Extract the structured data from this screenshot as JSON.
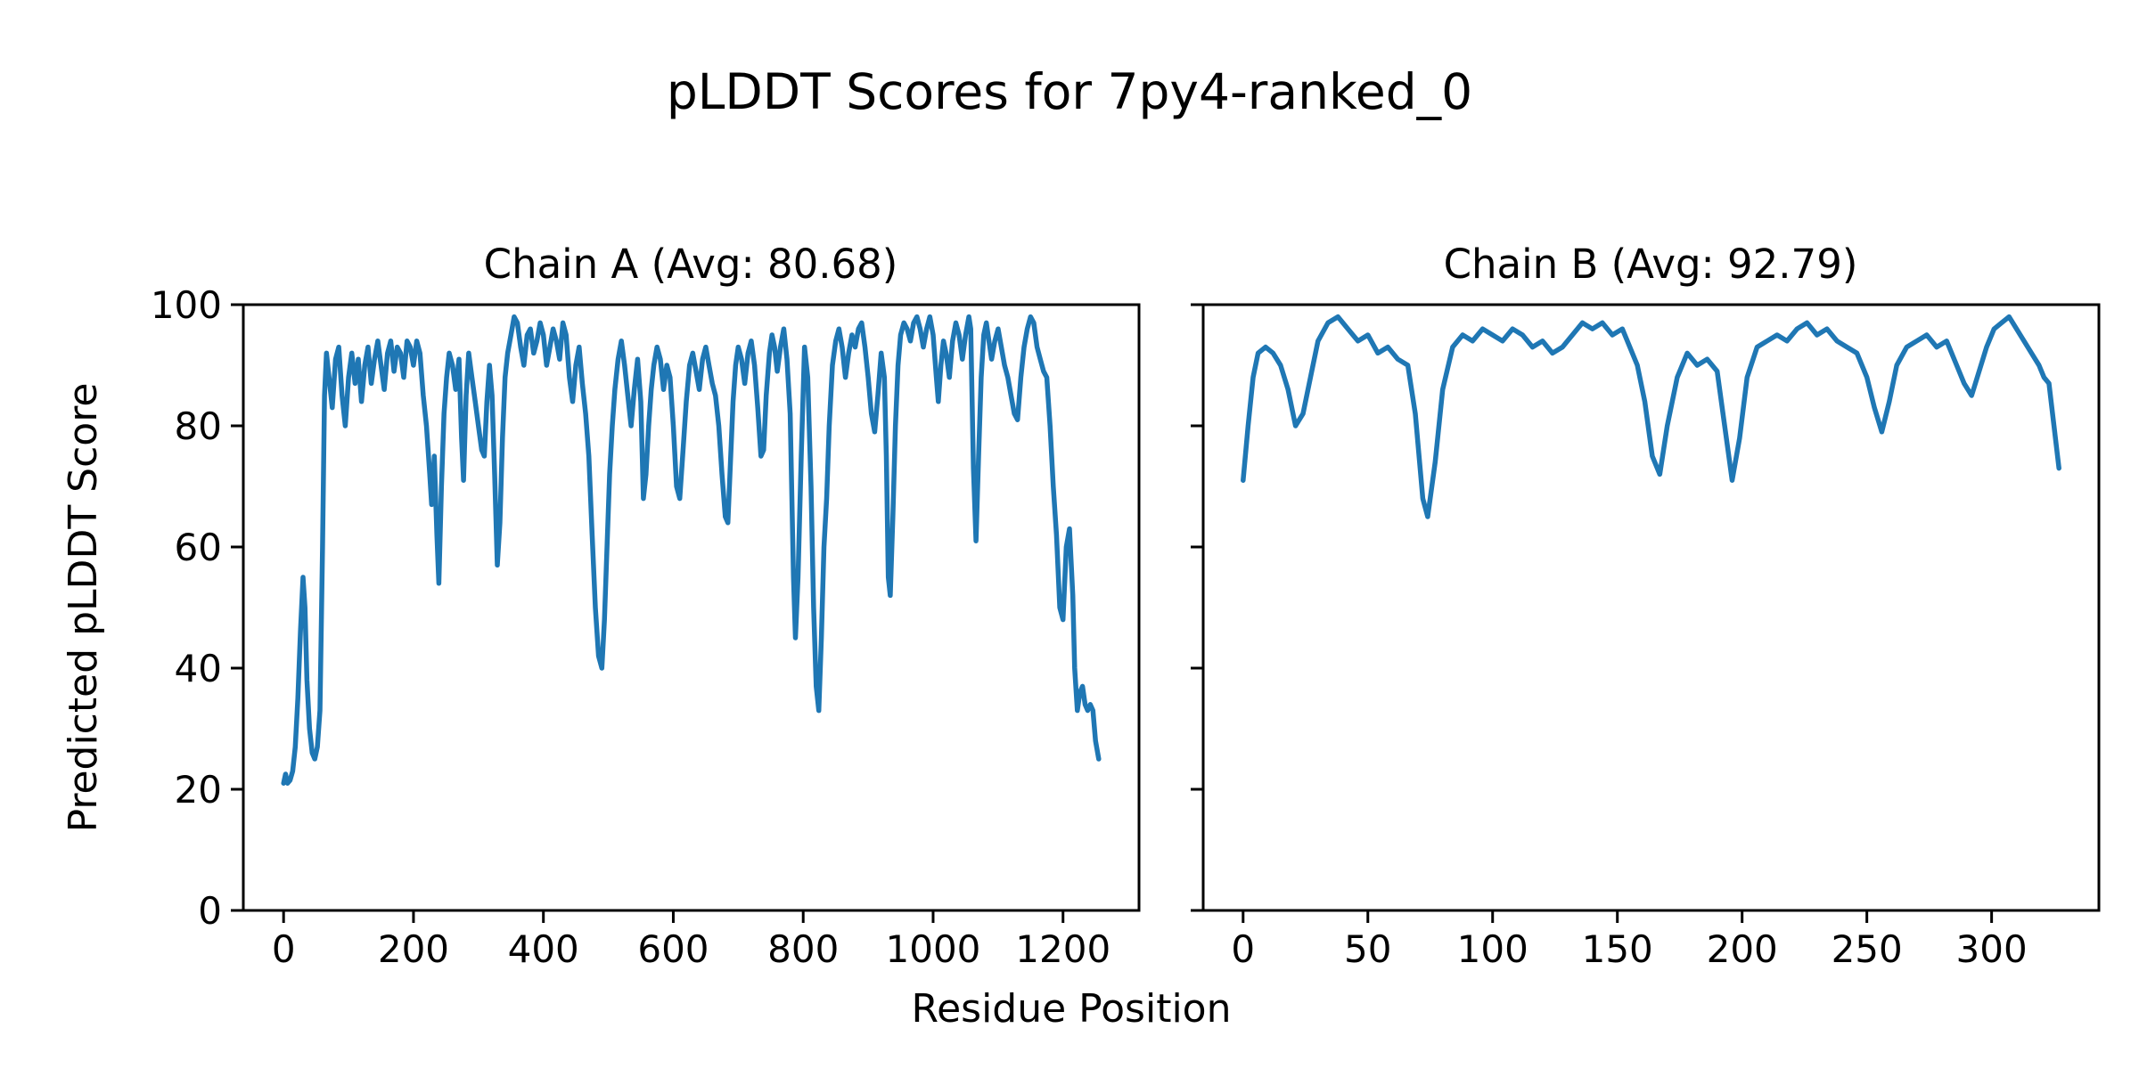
{
  "figure": {
    "title": "pLDDT Scores for 7py4-ranked_0",
    "xlabel": "Residue Position",
    "ylabel": "Predicted pLDDT Score",
    "background_color": "#ffffff",
    "line_color": "#1f77b4",
    "spine_color": "#000000",
    "tick_color": "#000000"
  },
  "chart_data": [
    {
      "type": "line",
      "title": "Chain A (Avg: 80.68)",
      "series_name": "Chain A pLDDT",
      "avg_label_value": "80.68",
      "xlim": [
        -62,
        1317
      ],
      "ylim": [
        0,
        100
      ],
      "xticks": [
        0,
        200,
        400,
        600,
        800,
        1000,
        1200
      ],
      "yticks": [
        0,
        20,
        40,
        60,
        80,
        100
      ],
      "show_ytick_labels": true,
      "grid": false,
      "points": [
        [
          0,
          21
        ],
        [
          3,
          22.5
        ],
        [
          6,
          21
        ],
        [
          10,
          21.5
        ],
        [
          14,
          23
        ],
        [
          18,
          27
        ],
        [
          22,
          35
        ],
        [
          26,
          46
        ],
        [
          30,
          55
        ],
        [
          33,
          50
        ],
        [
          36,
          38
        ],
        [
          40,
          30
        ],
        [
          44,
          26
        ],
        [
          48,
          25
        ],
        [
          52,
          27
        ],
        [
          56,
          33
        ],
        [
          60,
          60
        ],
        [
          63,
          85
        ],
        [
          66,
          92
        ],
        [
          70,
          88
        ],
        [
          75,
          83
        ],
        [
          80,
          91
        ],
        [
          85,
          93
        ],
        [
          90,
          85
        ],
        [
          95,
          80
        ],
        [
          100,
          88
        ],
        [
          105,
          92
        ],
        [
          110,
          87
        ],
        [
          115,
          91
        ],
        [
          120,
          84
        ],
        [
          125,
          90
        ],
        [
          130,
          93
        ],
        [
          135,
          87
        ],
        [
          140,
          91
        ],
        [
          145,
          94
        ],
        [
          150,
          90
        ],
        [
          155,
          86
        ],
        [
          160,
          92
        ],
        [
          165,
          94
        ],
        [
          170,
          89
        ],
        [
          175,
          93
        ],
        [
          180,
          92
        ],
        [
          185,
          88
        ],
        [
          190,
          94
        ],
        [
          195,
          93
        ],
        [
          200,
          90
        ],
        [
          205,
          94
        ],
        [
          210,
          92
        ],
        [
          215,
          85
        ],
        [
          220,
          80
        ],
        [
          225,
          72
        ],
        [
          228,
          67
        ],
        [
          232,
          75
        ],
        [
          236,
          62
        ],
        [
          239,
          54
        ],
        [
          243,
          70
        ],
        [
          247,
          82
        ],
        [
          251,
          88
        ],
        [
          255,
          92
        ],
        [
          260,
          90
        ],
        [
          265,
          86
        ],
        [
          270,
          91
        ],
        [
          274,
          78
        ],
        [
          277,
          71
        ],
        [
          281,
          85
        ],
        [
          285,
          92
        ],
        [
          290,
          88
        ],
        [
          295,
          84
        ],
        [
          300,
          80
        ],
        [
          305,
          76
        ],
        [
          309,
          75
        ],
        [
          313,
          84
        ],
        [
          317,
          90
        ],
        [
          321,
          85
        ],
        [
          325,
          72
        ],
        [
          329,
          57
        ],
        [
          333,
          64
        ],
        [
          337,
          78
        ],
        [
          341,
          88
        ],
        [
          345,
          92
        ],
        [
          350,
          95
        ],
        [
          355,
          98
        ],
        [
          360,
          97
        ],
        [
          365,
          93
        ],
        [
          370,
          90
        ],
        [
          375,
          95
        ],
        [
          380,
          96
        ],
        [
          385,
          92
        ],
        [
          390,
          94
        ],
        [
          395,
          97
        ],
        [
          400,
          95
        ],
        [
          405,
          90
        ],
        [
          410,
          93
        ],
        [
          415,
          96
        ],
        [
          420,
          94
        ],
        [
          425,
          91
        ],
        [
          430,
          97
        ],
        [
          435,
          95
        ],
        [
          440,
          88
        ],
        [
          445,
          84
        ],
        [
          450,
          90
        ],
        [
          455,
          93
        ],
        [
          460,
          87
        ],
        [
          465,
          82
        ],
        [
          470,
          75
        ],
        [
          475,
          62
        ],
        [
          480,
          50
        ],
        [
          485,
          42
        ],
        [
          490,
          40
        ],
        [
          494,
          48
        ],
        [
          498,
          60
        ],
        [
          502,
          72
        ],
        [
          506,
          80
        ],
        [
          510,
          86
        ],
        [
          515,
          91
        ],
        [
          520,
          94
        ],
        [
          525,
          90
        ],
        [
          530,
          85
        ],
        [
          535,
          80
        ],
        [
          540,
          86
        ],
        [
          545,
          91
        ],
        [
          550,
          84
        ],
        [
          554,
          68
        ],
        [
          558,
          72
        ],
        [
          562,
          80
        ],
        [
          566,
          86
        ],
        [
          570,
          90
        ],
        [
          575,
          93
        ],
        [
          580,
          91
        ],
        [
          585,
          86
        ],
        [
          590,
          90
        ],
        [
          595,
          88
        ],
        [
          600,
          80
        ],
        [
          605,
          70
        ],
        [
          610,
          68
        ],
        [
          615,
          76
        ],
        [
          620,
          84
        ],
        [
          625,
          90
        ],
        [
          630,
          92
        ],
        [
          635,
          89
        ],
        [
          640,
          86
        ],
        [
          645,
          91
        ],
        [
          650,
          93
        ],
        [
          655,
          90
        ],
        [
          660,
          87
        ],
        [
          665,
          85
        ],
        [
          670,
          80
        ],
        [
          675,
          72
        ],
        [
          680,
          65
        ],
        [
          684,
          64
        ],
        [
          688,
          74
        ],
        [
          692,
          84
        ],
        [
          696,
          90
        ],
        [
          700,
          93
        ],
        [
          705,
          91
        ],
        [
          710,
          87
        ],
        [
          715,
          92
        ],
        [
          720,
          94
        ],
        [
          725,
          90
        ],
        [
          730,
          83
        ],
        [
          735,
          75
        ],
        [
          739,
          76
        ],
        [
          743,
          85
        ],
        [
          748,
          92
        ],
        [
          752,
          95
        ],
        [
          756,
          93
        ],
        [
          760,
          89
        ],
        [
          765,
          93
        ],
        [
          770,
          96
        ],
        [
          775,
          91
        ],
        [
          780,
          82
        ],
        [
          785,
          55
        ],
        [
          788,
          45
        ],
        [
          792,
          55
        ],
        [
          797,
          75
        ],
        [
          802,
          93
        ],
        [
          807,
          88
        ],
        [
          812,
          70
        ],
        [
          816,
          50
        ],
        [
          820,
          37
        ],
        [
          824,
          33
        ],
        [
          828,
          45
        ],
        [
          832,
          60
        ],
        [
          836,
          68
        ],
        [
          840,
          80
        ],
        [
          845,
          90
        ],
        [
          850,
          94
        ],
        [
          855,
          96
        ],
        [
          860,
          93
        ],
        [
          865,
          88
        ],
        [
          870,
          92
        ],
        [
          875,
          95
        ],
        [
          880,
          93
        ],
        [
          885,
          96
        ],
        [
          890,
          97
        ],
        [
          895,
          93
        ],
        [
          900,
          88
        ],
        [
          905,
          82
        ],
        [
          910,
          79
        ],
        [
          915,
          85
        ],
        [
          920,
          92
        ],
        [
          925,
          88
        ],
        [
          928,
          75
        ],
        [
          931,
          55
        ],
        [
          934,
          52
        ],
        [
          938,
          65
        ],
        [
          942,
          80
        ],
        [
          946,
          90
        ],
        [
          950,
          95
        ],
        [
          955,
          97
        ],
        [
          960,
          96
        ],
        [
          965,
          94
        ],
        [
          970,
          97
        ],
        [
          975,
          98
        ],
        [
          980,
          96
        ],
        [
          985,
          93
        ],
        [
          990,
          96
        ],
        [
          995,
          98
        ],
        [
          1000,
          95
        ],
        [
          1005,
          88
        ],
        [
          1008,
          84
        ],
        [
          1012,
          90
        ],
        [
          1016,
          94
        ],
        [
          1020,
          92
        ],
        [
          1025,
          88
        ],
        [
          1030,
          94
        ],
        [
          1035,
          97
        ],
        [
          1040,
          95
        ],
        [
          1045,
          91
        ],
        [
          1050,
          95
        ],
        [
          1055,
          98
        ],
        [
          1058,
          96
        ],
        [
          1062,
          73
        ],
        [
          1066,
          61
        ],
        [
          1070,
          75
        ],
        [
          1074,
          88
        ],
        [
          1078,
          95
        ],
        [
          1082,
          97
        ],
        [
          1086,
          94
        ],
        [
          1090,
          91
        ],
        [
          1095,
          94
        ],
        [
          1100,
          96
        ],
        [
          1105,
          93
        ],
        [
          1110,
          90
        ],
        [
          1115,
          88
        ],
        [
          1120,
          85
        ],
        [
          1125,
          82
        ],
        [
          1130,
          81
        ],
        [
          1135,
          88
        ],
        [
          1140,
          93
        ],
        [
          1145,
          96
        ],
        [
          1150,
          98
        ],
        [
          1155,
          97
        ],
        [
          1160,
          93
        ],
        [
          1165,
          91
        ],
        [
          1170,
          89
        ],
        [
          1175,
          88
        ],
        [
          1180,
          80
        ],
        [
          1185,
          70
        ],
        [
          1190,
          62
        ],
        [
          1195,
          50
        ],
        [
          1200,
          48
        ],
        [
          1205,
          60
        ],
        [
          1210,
          63
        ],
        [
          1215,
          52
        ],
        [
          1218,
          40
        ],
        [
          1222,
          33
        ],
        [
          1226,
          36
        ],
        [
          1230,
          37
        ],
        [
          1234,
          34
        ],
        [
          1238,
          33
        ],
        [
          1242,
          34
        ],
        [
          1246,
          33
        ],
        [
          1250,
          28
        ],
        [
          1255,
          25
        ]
      ]
    },
    {
      "type": "line",
      "title": "Chain B (Avg: 92.79)",
      "series_name": "Chain B pLDDT",
      "avg_label_value": "92.79",
      "xlim": [
        -16,
        343
      ],
      "ylim": [
        0,
        100
      ],
      "xticks": [
        0,
        50,
        100,
        150,
        200,
        250,
        300
      ],
      "yticks": [
        0,
        20,
        40,
        60,
        80,
        100
      ],
      "show_ytick_labels": false,
      "grid": false,
      "points": [
        [
          0,
          71
        ],
        [
          2,
          80
        ],
        [
          4,
          88
        ],
        [
          6,
          92
        ],
        [
          9,
          93
        ],
        [
          12,
          92
        ],
        [
          15,
          90
        ],
        [
          18,
          86
        ],
        [
          21,
          80
        ],
        [
          24,
          82
        ],
        [
          27,
          88
        ],
        [
          30,
          94
        ],
        [
          34,
          97
        ],
        [
          38,
          98
        ],
        [
          42,
          96
        ],
        [
          46,
          94
        ],
        [
          50,
          95
        ],
        [
          54,
          92
        ],
        [
          58,
          93
        ],
        [
          62,
          91
        ],
        [
          66,
          90
        ],
        [
          69,
          82
        ],
        [
          72,
          68
        ],
        [
          74,
          65
        ],
        [
          77,
          74
        ],
        [
          80,
          86
        ],
        [
          84,
          93
        ],
        [
          88,
          95
        ],
        [
          92,
          94
        ],
        [
          96,
          96
        ],
        [
          100,
          95
        ],
        [
          104,
          94
        ],
        [
          108,
          96
        ],
        [
          112,
          95
        ],
        [
          116,
          93
        ],
        [
          120,
          94
        ],
        [
          124,
          92
        ],
        [
          128,
          93
        ],
        [
          132,
          95
        ],
        [
          136,
          97
        ],
        [
          140,
          96
        ],
        [
          144,
          97
        ],
        [
          148,
          95
        ],
        [
          152,
          96
        ],
        [
          155,
          93
        ],
        [
          158,
          90
        ],
        [
          161,
          84
        ],
        [
          164,
          75
        ],
        [
          167,
          72
        ],
        [
          170,
          80
        ],
        [
          174,
          88
        ],
        [
          178,
          92
        ],
        [
          182,
          90
        ],
        [
          186,
          91
        ],
        [
          190,
          89
        ],
        [
          193,
          80
        ],
        [
          196,
          71
        ],
        [
          199,
          78
        ],
        [
          202,
          88
        ],
        [
          206,
          93
        ],
        [
          210,
          94
        ],
        [
          214,
          95
        ],
        [
          218,
          94
        ],
        [
          222,
          96
        ],
        [
          226,
          97
        ],
        [
          230,
          95
        ],
        [
          234,
          96
        ],
        [
          238,
          94
        ],
        [
          242,
          93
        ],
        [
          246,
          92
        ],
        [
          250,
          88
        ],
        [
          253,
          83
        ],
        [
          256,
          79
        ],
        [
          259,
          84
        ],
        [
          262,
          90
        ],
        [
          266,
          93
        ],
        [
          270,
          94
        ],
        [
          274,
          95
        ],
        [
          278,
          93
        ],
        [
          282,
          94
        ],
        [
          286,
          90
        ],
        [
          289,
          87
        ],
        [
          292,
          85
        ],
        [
          295,
          89
        ],
        [
          298,
          93
        ],
        [
          301,
          96
        ],
        [
          304,
          97
        ],
        [
          307,
          98
        ],
        [
          310,
          96
        ],
        [
          313,
          94
        ],
        [
          316,
          92
        ],
        [
          319,
          90
        ],
        [
          321,
          88
        ],
        [
          323,
          87
        ],
        [
          325,
          80
        ],
        [
          327,
          73
        ]
      ]
    }
  ]
}
